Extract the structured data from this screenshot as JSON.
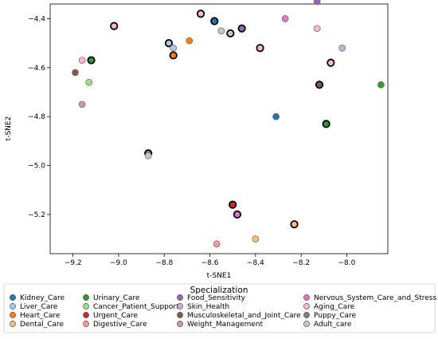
{
  "chart_data": {
    "type": "scatter",
    "xlabel": "t-SNE1",
    "ylabel": "t-SNE2",
    "xlim": [
      -9.3,
      -7.82
    ],
    "ylim": [
      -5.36,
      -4.34
    ],
    "xticks": [
      -9.2,
      -9.0,
      -8.8,
      -8.6,
      -8.4,
      -8.2,
      -8.0
    ],
    "xtick_labels": [
      "−9.2",
      "−9.0",
      "−8.8",
      "−8.6",
      "−8.4",
      "−8.2",
      "−8.0"
    ],
    "yticks": [
      -4.4,
      -4.6,
      -4.8,
      -5.0,
      -5.2
    ],
    "ytick_labels": [
      "−4.4",
      "−4.6",
      "−4.8",
      "−5.0",
      "−5.2"
    ],
    "grid": false,
    "legend": {
      "title": "Specialization",
      "placement": "bottom",
      "columns": 4,
      "entries": [
        {
          "label": "Kidney_Care",
          "color": "#1f77b4"
        },
        {
          "label": "Liver_Care",
          "color": "#aec7e8"
        },
        {
          "label": "Heart_Care",
          "color": "#ff7f0e"
        },
        {
          "label": "Dental_Care",
          "color": "#ffbb78"
        },
        {
          "label": "Urinary_Care",
          "color": "#2ca02c"
        },
        {
          "label": "Cancer_Patient_Support",
          "color": "#98df8a"
        },
        {
          "label": "Urgent_Care",
          "color": "#d62728"
        },
        {
          "label": "Digestive_Care",
          "color": "#ff9896"
        },
        {
          "label": "Food_Sensitivity",
          "color": "#9467bd"
        },
        {
          "label": "Skin_Health",
          "color": "#c5b0d5"
        },
        {
          "label": "Musculoskeletal_and_Joint_Care",
          "color": "#8c564b"
        },
        {
          "label": "Weight_Management",
          "color": "#c49c94"
        },
        {
          "label": "Nervous_System_Care_and_Stress",
          "color": "#e377c2"
        },
        {
          "label": "Aging_Care",
          "color": "#f7b6d2"
        },
        {
          "label": "Puppy_Care",
          "color": "#7f7f7f"
        },
        {
          "label": "Adult_care",
          "color": "#c7c7c7"
        }
      ]
    },
    "points": [
      {
        "x": -8.13,
        "y": -4.33,
        "fill": "#9467bd",
        "bold": false
      },
      {
        "x": -8.27,
        "y": -4.4,
        "fill": "#e377c2",
        "bold": false
      },
      {
        "x": -8.64,
        "y": -4.38,
        "fill": "#f7b6d2",
        "bold": true
      },
      {
        "x": -8.58,
        "y": -4.41,
        "fill": "#1f77b4",
        "bold": true
      },
      {
        "x": -8.46,
        "y": -4.44,
        "fill": "#9467bd",
        "bold": true
      },
      {
        "x": -9.02,
        "y": -4.43,
        "fill": "#f7b6d2",
        "bold": true
      },
      {
        "x": -8.13,
        "y": -4.44,
        "fill": "#f7b6d2",
        "bold": false
      },
      {
        "x": -8.55,
        "y": -4.45,
        "fill": "#c7c7c7",
        "bold": false
      },
      {
        "x": -8.51,
        "y": -4.46,
        "fill": "#c7c7c7",
        "bold": true
      },
      {
        "x": -8.69,
        "y": -4.49,
        "fill": "#ff7f0e",
        "bold": false
      },
      {
        "x": -8.78,
        "y": -4.5,
        "fill": "#aec7e8",
        "bold": true
      },
      {
        "x": -8.76,
        "y": -4.52,
        "fill": "#aec7e8",
        "bold": false
      },
      {
        "x": -8.38,
        "y": -4.52,
        "fill": "#f7b6d2",
        "bold": true
      },
      {
        "x": -8.02,
        "y": -4.52,
        "fill": "#c5b0d5",
        "bold": false
      },
      {
        "x": -8.76,
        "y": -4.55,
        "fill": "#ff7f0e",
        "bold": true
      },
      {
        "x": -9.16,
        "y": -4.57,
        "fill": "#f7b6d2",
        "bold": false
      },
      {
        "x": -9.12,
        "y": -4.57,
        "fill": "#2ca02c",
        "bold": true
      },
      {
        "x": -8.07,
        "y": -4.58,
        "fill": "#f7b6d2",
        "bold": true
      },
      {
        "x": -9.19,
        "y": -4.62,
        "fill": "#8c564b",
        "bold": false
      },
      {
        "x": -9.13,
        "y": -4.66,
        "fill": "#98df8a",
        "bold": false
      },
      {
        "x": -8.12,
        "y": -4.67,
        "fill": "#8c564b",
        "bold": true
      },
      {
        "x": -7.85,
        "y": -4.67,
        "fill": "#2ca02c",
        "bold": false
      },
      {
        "x": -9.16,
        "y": -4.75,
        "fill": "#c49c94",
        "bold": false
      },
      {
        "x": -8.31,
        "y": -4.8,
        "fill": "#1f77b4",
        "bold": false
      },
      {
        "x": -8.09,
        "y": -4.83,
        "fill": "#2ca02c",
        "bold": true
      },
      {
        "x": -8.87,
        "y": -4.95,
        "fill": "#7f7f7f",
        "bold": true
      },
      {
        "x": -8.87,
        "y": -4.96,
        "fill": "#c7c7c7",
        "bold": false
      },
      {
        "x": -8.5,
        "y": -5.16,
        "fill": "#d62728",
        "bold": true
      },
      {
        "x": -8.48,
        "y": -5.2,
        "fill": "#e377c2",
        "bold": true
      },
      {
        "x": -8.23,
        "y": -5.24,
        "fill": "#ffbb78",
        "bold": true
      },
      {
        "x": -8.4,
        "y": -5.3,
        "fill": "#ffbb78",
        "bold": false
      },
      {
        "x": -8.57,
        "y": -5.32,
        "fill": "#ff9896",
        "bold": false
      }
    ]
  }
}
